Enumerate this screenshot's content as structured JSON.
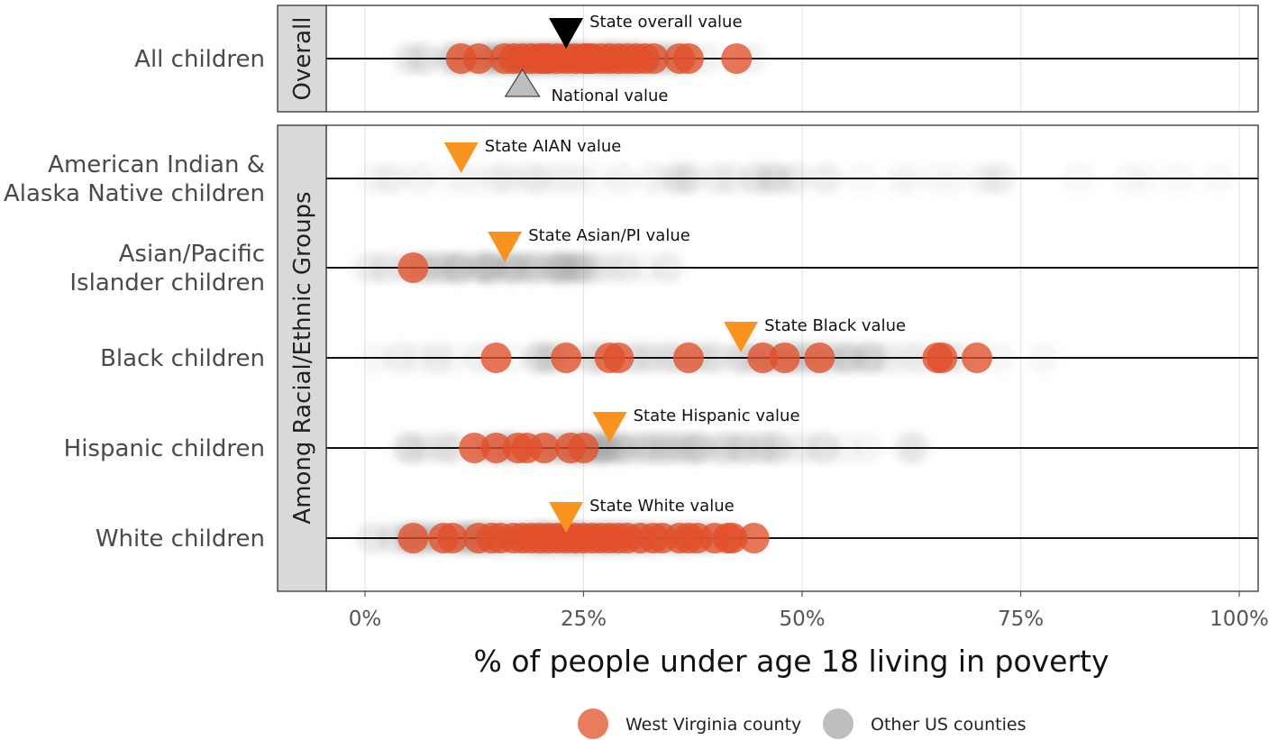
{
  "chart_data": {
    "type": "scatter",
    "xlabel": "% of people under age 18 living in poverty",
    "xlim": [
      0,
      100
    ],
    "x_ticks": [
      "0%",
      "25%",
      "50%",
      "75%",
      "100%"
    ],
    "grid": true,
    "legend_placement": "bottom",
    "legend": [
      {
        "key": "wv",
        "label": "West Virginia county",
        "color": "#E2502A"
      },
      {
        "key": "us",
        "label": "Other US counties",
        "color": "#A8A8A8"
      }
    ],
    "panels": [
      {
        "strip": "Overall",
        "rows": [
          {
            "label": [
              "All children"
            ],
            "wv_values": [
              11,
              13,
              16,
              17,
              18,
              19,
              20,
              20.5,
              21,
              22,
              23,
              24,
              25,
              25.5,
              26,
              27,
              28,
              29,
              30,
              31,
              32,
              33,
              36,
              37,
              42.5
            ],
            "markers": [
              {
                "label": "State overall value",
                "value": 23,
                "shape": "down",
                "color": "#000000"
              },
              {
                "label": "National value",
                "value": 18,
                "shape": "up",
                "color": "#BDBDBD"
              }
            ]
          }
        ]
      },
      {
        "strip": "Among Racial/Ethnic Groups",
        "rows": [
          {
            "label": [
              "American Indian &",
              "Alaska Native children"
            ],
            "wv_values": [],
            "markers": [
              {
                "label": "State AIAN value",
                "value": 11,
                "shape": "down",
                "color": "#F7931E"
              }
            ]
          },
          {
            "label": [
              "Asian/Pacific",
              "Islander children"
            ],
            "wv_values": [
              5.5
            ],
            "markers": [
              {
                "label": "State Asian/PI value",
                "value": 16,
                "shape": "down",
                "color": "#F7931E"
              }
            ]
          },
          {
            "label": [
              "Black children"
            ],
            "wv_values": [
              15,
              23,
              28,
              29,
              37,
              45.5,
              48,
              52,
              65.5,
              66,
              70
            ],
            "markers": [
              {
                "label": "State Black value",
                "value": 43,
                "shape": "down",
                "color": "#F7931E"
              }
            ]
          },
          {
            "label": [
              "Hispanic children"
            ],
            "wv_values": [
              12.5,
              15,
              17.5,
              18.5,
              20.5,
              23.5,
              25
            ],
            "markers": [
              {
                "label": "State Hispanic value",
                "value": 28,
                "shape": "down",
                "color": "#F7931E"
              }
            ]
          },
          {
            "label": [
              "White children"
            ],
            "wv_values": [
              5.5,
              9,
              10,
              13,
              14.5,
              15.5,
              17,
              18,
              19,
              20,
              21,
              22,
              23,
              24,
              25,
              26,
              27,
              28,
              29,
              30,
              31.5,
              33,
              34,
              36,
              37,
              38,
              40,
              41.5,
              42,
              44.5
            ],
            "markers": [
              {
                "label": "State White value",
                "value": 23,
                "shape": "down",
                "color": "#F7931E"
              }
            ]
          }
        ]
      }
    ]
  }
}
